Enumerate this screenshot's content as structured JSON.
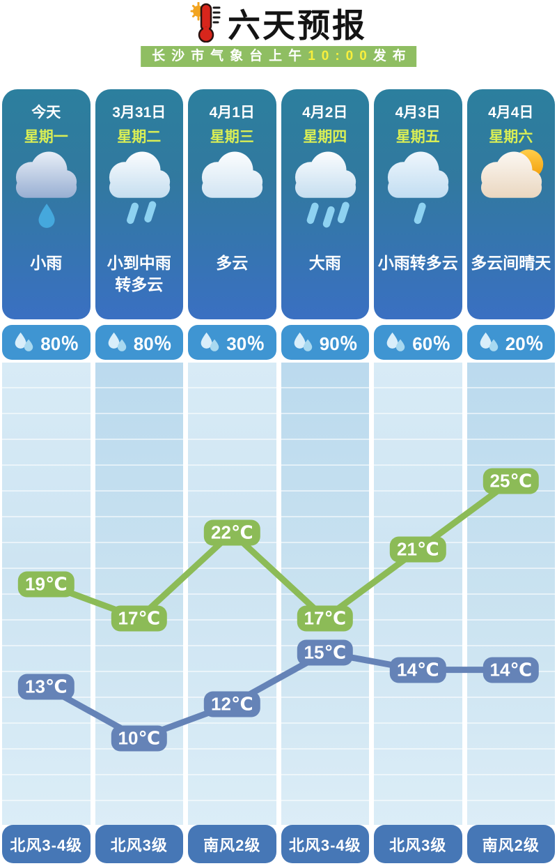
{
  "header": {
    "title": "六天预报",
    "title_icon": "thermometer-sun-icon",
    "publisher_bar": {
      "prefix": "长沙市气象台上午",
      "time": "10:00",
      "suffix": "发布",
      "bar_color": "#8fbe62",
      "time_color": "#f8ef3d"
    }
  },
  "days": [
    {
      "date": "今天",
      "weekday": "星期一",
      "icon": "light-rain",
      "condition": "小雨",
      "precipitation": "80％",
      "wind": "北风3-4级",
      "temp_high": 19,
      "temp_low": 13
    },
    {
      "date": "3月31日",
      "weekday": "星期二",
      "icon": "moderate-rain",
      "condition": "小到中雨\n转多云",
      "precipitation": "80％",
      "wind": "北风3级",
      "temp_high": 17,
      "temp_low": 10
    },
    {
      "date": "4月1日",
      "weekday": "星期三",
      "icon": "cloudy",
      "condition": "多云",
      "precipitation": "30％",
      "wind": "南风2级",
      "temp_high": 22,
      "temp_low": 12
    },
    {
      "date": "4月2日",
      "weekday": "星期四",
      "icon": "heavy-rain",
      "condition": "大雨",
      "precipitation": "90％",
      "wind": "北风3-4级",
      "temp_high": 17,
      "temp_low": 15
    },
    {
      "date": "4月3日",
      "weekday": "星期五",
      "icon": "light-rain-to-cloudy",
      "condition": "小雨转多云",
      "precipitation": "60％",
      "wind": "北风3级",
      "temp_high": 21,
      "temp_low": 14
    },
    {
      "date": "4月4日",
      "weekday": "星期六",
      "icon": "partly-sunny",
      "condition": "多云间晴天",
      "precipitation": "20％",
      "wind": "南风2级",
      "temp_high": 25,
      "temp_low": 14
    }
  ],
  "chart_data": {
    "type": "line",
    "categories": [
      "今天",
      "3月31日",
      "4月1日",
      "4月2日",
      "4月3日",
      "4月4日"
    ],
    "series": [
      {
        "name": "high",
        "color": "#8cbb57",
        "values": [
          19,
          17,
          22,
          17,
          21,
          25
        ]
      },
      {
        "name": "low",
        "color": "#6583b7",
        "values": [
          13,
          10,
          12,
          15,
          14,
          14
        ]
      }
    ],
    "unit": "℃",
    "ylim": [
      8,
      27
    ],
    "grid": "horizontal-stripes",
    "legend": "none",
    "point_labels": "rounded-badges"
  }
}
